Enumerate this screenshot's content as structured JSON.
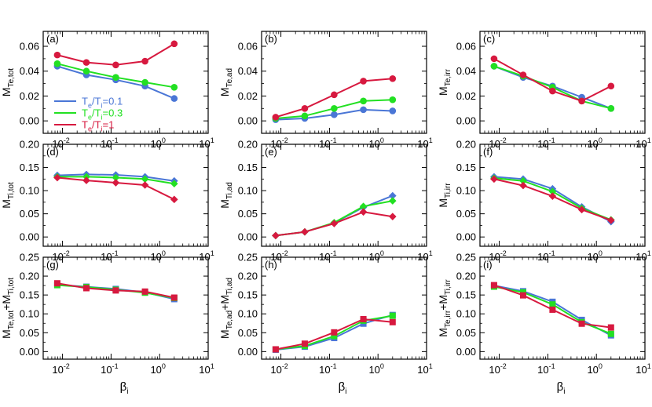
{
  "figure": {
    "xlabel_main": "β",
    "xlabel_sub": "i",
    "x": [
      0.0078,
      0.031,
      0.125,
      0.5,
      2.0
    ],
    "legend": {
      "entries": [
        {
          "main": "T",
          "sub1": "e",
          "mid": "/T",
          "sub2": "i",
          "tail": "=0.1",
          "color": "#4a76d6"
        },
        {
          "main": "T",
          "sub1": "e",
          "mid": "/T",
          "sub2": "i",
          "tail": "=0.3",
          "color": "#22e022"
        },
        {
          "main": "T",
          "sub1": "e",
          "mid": "/T",
          "sub2": "i",
          "tail": "=1",
          "color": "#d7193f"
        }
      ]
    },
    "series_colors": {
      "t01": "#4a76d6",
      "t03": "#22e022",
      "t1": "#d7193f"
    },
    "x_ticks": [
      {
        "base": "10",
        "exp": "-2"
      },
      {
        "base": "10",
        "exp": "-1"
      },
      {
        "base": "10",
        "exp": "0"
      },
      {
        "base": "10",
        "exp": "1"
      }
    ]
  },
  "chart_data": [
    {
      "type": "line",
      "panel": "(a)",
      "ylabel": {
        "main": "M",
        "sub": "Te,tot"
      },
      "ylim": [
        -0.01,
        0.072
      ],
      "yticks": [
        "0.00",
        "0.02",
        "0.04",
        "0.06"
      ],
      "ytick_values": [
        0,
        0.02,
        0.04,
        0.06
      ],
      "marker": "circle",
      "series": [
        {
          "name": "Te/Ti=0.1",
          "values": [
            0.044,
            0.037,
            0.033,
            0.028,
            0.018
          ]
        },
        {
          "name": "Te/Ti=0.3",
          "values": [
            0.046,
            0.04,
            0.035,
            0.031,
            0.027
          ]
        },
        {
          "name": "Te/Ti=1",
          "values": [
            0.053,
            0.047,
            0.045,
            0.048,
            0.062
          ]
        }
      ]
    },
    {
      "type": "line",
      "panel": "(b)",
      "ylabel": {
        "main": "M",
        "sub": "Te,ad"
      },
      "ylim": [
        -0.01,
        0.072
      ],
      "yticks": [
        "0.00",
        "0.02",
        "0.04",
        "0.06"
      ],
      "ytick_values": [
        0,
        0.02,
        0.04,
        0.06
      ],
      "marker": "circle",
      "series": [
        {
          "name": "Te/Ti=0.1",
          "values": [
            0.001,
            0.002,
            0.005,
            0.009,
            0.008
          ]
        },
        {
          "name": "Te/Ti=0.3",
          "values": [
            0.002,
            0.004,
            0.01,
            0.016,
            0.017
          ]
        },
        {
          "name": "Te/Ti=1",
          "values": [
            0.003,
            0.01,
            0.021,
            0.032,
            0.034
          ]
        }
      ]
    },
    {
      "type": "line",
      "panel": "(c)",
      "ylabel": {
        "main": "M",
        "sub": "Te,irr"
      },
      "ylim": [
        -0.01,
        0.072
      ],
      "yticks": [
        "0.00",
        "0.02",
        "0.04",
        "0.06"
      ],
      "ytick_values": [
        0,
        0.02,
        0.04,
        0.06
      ],
      "marker": "circle",
      "series": [
        {
          "name": "Te/Ti=0.1",
          "values": [
            0.044,
            0.035,
            0.028,
            0.019,
            0.01
          ]
        },
        {
          "name": "Te/Ti=0.3",
          "values": [
            0.044,
            0.036,
            0.027,
            0.016,
            0.01
          ]
        },
        {
          "name": "Te/Ti=1",
          "values": [
            0.05,
            0.037,
            0.024,
            0.016,
            0.028
          ]
        }
      ]
    },
    {
      "type": "line",
      "panel": "(d)",
      "ylabel": {
        "main": "M",
        "sub": "Ti,tot"
      },
      "ylim": [
        -0.02,
        0.2
      ],
      "yticks": [
        "0.00",
        "0.05",
        "0.10",
        "0.15",
        "0.20"
      ],
      "ytick_values": [
        0,
        0.05,
        0.1,
        0.15,
        0.2
      ],
      "marker": "diamond",
      "series": [
        {
          "name": "Te/Ti=0.1",
          "values": [
            0.133,
            0.135,
            0.134,
            0.13,
            0.121
          ]
        },
        {
          "name": "Te/Ti=0.3",
          "values": [
            0.13,
            0.13,
            0.128,
            0.125,
            0.115
          ]
        },
        {
          "name": "Te/Ti=1",
          "values": [
            0.128,
            0.122,
            0.117,
            0.112,
            0.081
          ]
        }
      ]
    },
    {
      "type": "line",
      "panel": "(e)",
      "ylabel": {
        "main": "M",
        "sub": "Ti,ad"
      },
      "ylim": [
        -0.02,
        0.2
      ],
      "yticks": [
        "0.00",
        "0.05",
        "0.10",
        "0.15",
        "0.20"
      ],
      "ytick_values": [
        0,
        0.05,
        0.1,
        0.15,
        0.2
      ],
      "marker": "diamond",
      "series": [
        {
          "name": "Te/Ti=0.1",
          "values": [
            0.003,
            0.011,
            0.03,
            0.064,
            0.089
          ]
        },
        {
          "name": "Te/Ti=0.3",
          "values": [
            0.003,
            0.011,
            0.031,
            0.066,
            0.078
          ]
        },
        {
          "name": "Te/Ti=1",
          "values": [
            0.003,
            0.011,
            0.029,
            0.054,
            0.044
          ]
        }
      ]
    },
    {
      "type": "line",
      "panel": "(f)",
      "ylabel": {
        "main": "M",
        "sub": "Ti,irr"
      },
      "ylim": [
        -0.02,
        0.2
      ],
      "yticks": [
        "0.00",
        "0.05",
        "0.10",
        "0.15",
        "0.20"
      ],
      "ytick_values": [
        0,
        0.05,
        0.1,
        0.15,
        0.2
      ],
      "marker": "diamond",
      "series": [
        {
          "name": "Te/Ti=0.1",
          "values": [
            0.13,
            0.125,
            0.104,
            0.065,
            0.033
          ]
        },
        {
          "name": "Te/Ti=0.3",
          "values": [
            0.127,
            0.121,
            0.098,
            0.062,
            0.037
          ]
        },
        {
          "name": "Te/Ti=1",
          "values": [
            0.125,
            0.111,
            0.088,
            0.059,
            0.036
          ]
        }
      ]
    },
    {
      "type": "line",
      "panel": "(g)",
      "ylabel": {
        "main": "M",
        "sub": "Te,tot",
        "plus": "+M",
        "sub2": "Ti,tot"
      },
      "ylim": [
        -0.02,
        0.25
      ],
      "yticks": [
        "0.00",
        "0.05",
        "0.10",
        "0.15",
        "0.20",
        "0.25"
      ],
      "ytick_values": [
        0,
        0.05,
        0.1,
        0.15,
        0.2,
        0.25
      ],
      "marker": "square",
      "series": [
        {
          "name": "Te/Ti=0.1",
          "values": [
            0.177,
            0.172,
            0.166,
            0.157,
            0.139
          ]
        },
        {
          "name": "Te/Ti=0.3",
          "values": [
            0.176,
            0.171,
            0.164,
            0.156,
            0.142
          ]
        },
        {
          "name": "Te/Ti=1",
          "values": [
            0.181,
            0.168,
            0.162,
            0.159,
            0.143
          ]
        }
      ]
    },
    {
      "type": "line",
      "panel": "(h)",
      "ylabel": {
        "main": "M",
        "sub": "Te,ad",
        "plus": "+M",
        "sub2": "Ti,ad"
      },
      "ylim": [
        -0.02,
        0.25
      ],
      "yticks": [
        "0.00",
        "0.05",
        "0.10",
        "0.15",
        "0.20",
        "0.25"
      ],
      "ytick_values": [
        0,
        0.05,
        0.1,
        0.15,
        0.2,
        0.25
      ],
      "marker": "square",
      "series": [
        {
          "name": "Te/Ti=0.1",
          "values": [
            0.005,
            0.013,
            0.036,
            0.074,
            0.097
          ]
        },
        {
          "name": "Te/Ti=0.3",
          "values": [
            0.006,
            0.015,
            0.041,
            0.082,
            0.095
          ]
        },
        {
          "name": "Te/Ti=1",
          "values": [
            0.006,
            0.021,
            0.051,
            0.086,
            0.078
          ]
        }
      ]
    },
    {
      "type": "line",
      "panel": "(i)",
      "ylabel": {
        "main": "M",
        "sub": "Te,irr",
        "plus": "+M",
        "sub2": "Ti,irr"
      },
      "ylim": [
        -0.02,
        0.25
      ],
      "yticks": [
        "0.00",
        "0.05",
        "0.10",
        "0.15",
        "0.20",
        "0.25"
      ],
      "ytick_values": [
        0,
        0.05,
        0.1,
        0.15,
        0.2,
        0.25
      ],
      "marker": "square",
      "series": [
        {
          "name": "Te/Ti=0.1",
          "values": [
            0.175,
            0.16,
            0.132,
            0.084,
            0.043
          ]
        },
        {
          "name": "Te/Ti=0.3",
          "values": [
            0.172,
            0.157,
            0.125,
            0.078,
            0.047
          ]
        },
        {
          "name": "Te/Ti=1",
          "values": [
            0.176,
            0.149,
            0.111,
            0.074,
            0.064
          ]
        }
      ]
    }
  ]
}
